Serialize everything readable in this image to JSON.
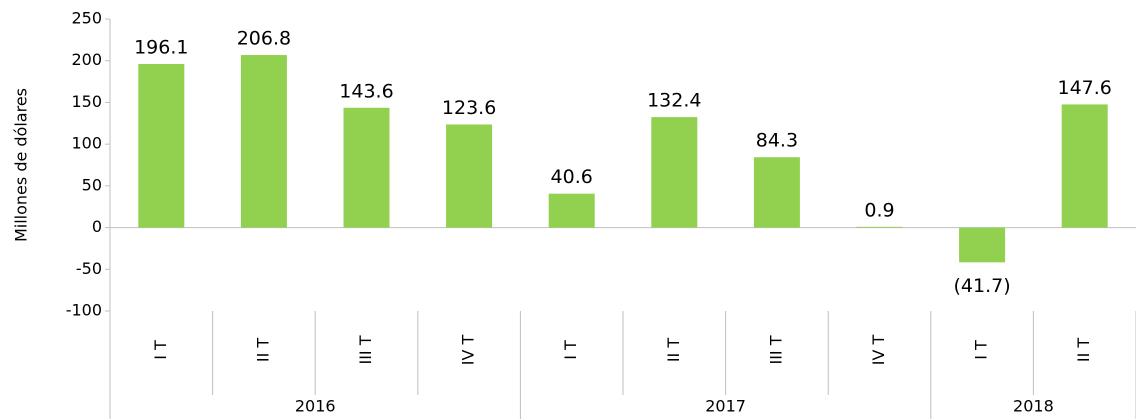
{
  "chart_data": {
    "type": "bar",
    "y_label": "Millones de dólares",
    "groups": [
      {
        "label": "2016",
        "categories": [
          "I T",
          "II T",
          "III T",
          "IV T"
        ]
      },
      {
        "label": "2017",
        "categories": [
          "I T",
          "II T",
          "III T",
          "IV T"
        ]
      },
      {
        "label": "2018",
        "categories": [
          "I T",
          "II T"
        ]
      }
    ],
    "values": [
      196.1,
      206.8,
      143.6,
      123.6,
      40.6,
      132.4,
      84.3,
      0.9,
      -41.7,
      147.6
    ],
    "value_labels": [
      "196.1",
      "206.8",
      "143.6",
      "123.6",
      "40.6",
      "132.4",
      "84.3",
      "0.9",
      "(41.7)",
      "147.6"
    ],
    "color": "#92d050",
    "ylim": [
      -100,
      250
    ],
    "yticks": [
      -100,
      -50,
      0,
      50,
      100,
      150,
      200,
      250
    ],
    "grid": false
  }
}
